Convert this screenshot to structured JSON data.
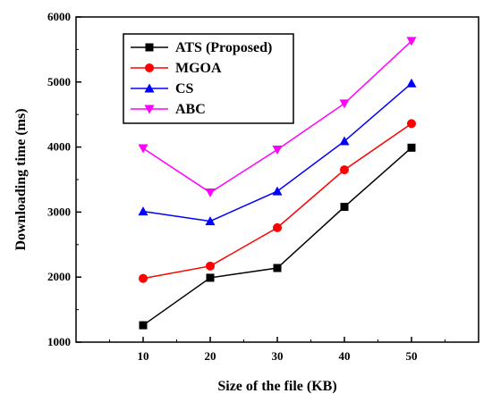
{
  "chart_data": {
    "type": "line",
    "title": "",
    "xlabel": "Size of the file (KB)",
    "ylabel": "Downloading time (ms)",
    "x": [
      10,
      20,
      30,
      40,
      50
    ],
    "xticks": [
      "10",
      "20",
      "30",
      "40",
      "50"
    ],
    "xlim": [
      0,
      60
    ],
    "ylim": [
      1000,
      6000
    ],
    "yticks": [
      "1000",
      "2000",
      "3000",
      "4000",
      "5000",
      "6000"
    ],
    "legend_position": "top-left",
    "grid": false,
    "series": [
      {
        "name": "ATS (Proposed)",
        "color": "#000000",
        "marker": "square",
        "values": [
          1260,
          1990,
          2140,
          3080,
          3990
        ]
      },
      {
        "name": "MGOA",
        "color": "#ff0000",
        "marker": "circle",
        "values": [
          1980,
          2170,
          2760,
          3650,
          4360
        ]
      },
      {
        "name": "CS",
        "color": "#0000ff",
        "marker": "triangle-up",
        "values": [
          3010,
          2860,
          3320,
          4090,
          4980
        ]
      },
      {
        "name": "ABC",
        "color": "#ff00ff",
        "marker": "triangle-down",
        "values": [
          3980,
          3300,
          3960,
          4670,
          5630
        ]
      }
    ]
  }
}
